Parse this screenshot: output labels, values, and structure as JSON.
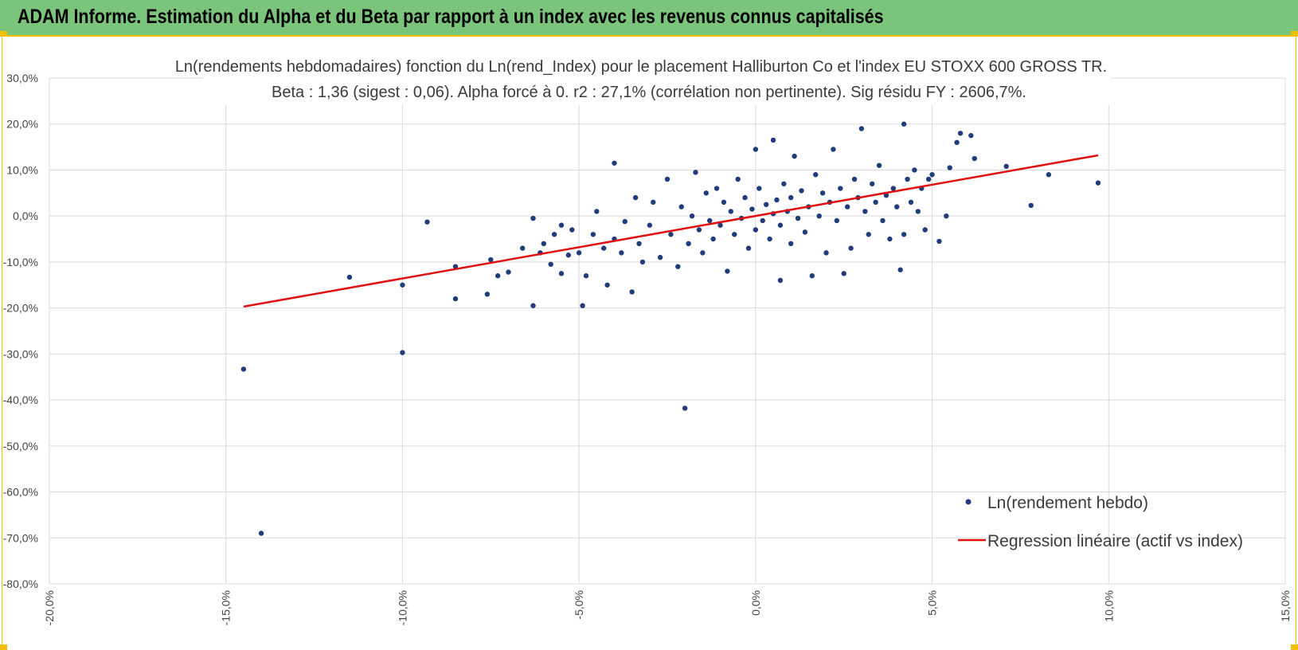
{
  "header": {
    "title": "ADAM Informe. Estimation du Alpha et du Beta par rapport à un index avec les revenus connus capitalisés"
  },
  "colors": {
    "banner": "#7bc47b",
    "accent_border": "#f0c000",
    "points": "#1f3d7a",
    "regression": "#e01010",
    "grid": "#d9d9d9"
  },
  "chart_data": {
    "type": "scatter",
    "title_line1": "Ln(rendements hebdomadaires) fonction du Ln(rend_Index) pour le placement Halliburton Co et l'index EU STOXX 600 GROSS TR.",
    "title_line2": "Beta : 1,36 (sigest : 0,06). Alpha forcé à 0. r2 : 27,1% (corrélation non pertinente). Sig résidu FY : 2606,7%.",
    "xlabel": "",
    "ylabel": "",
    "xlim": [
      -0.2,
      0.15
    ],
    "ylim": [
      -0.8,
      0.3
    ],
    "x_ticks": [
      "-20,0%",
      "-15,0%",
      "-10,0%",
      "-5,0%",
      "0,0%",
      "5,0%",
      "10,0%",
      "15,0%"
    ],
    "y_ticks": [
      "30,0%",
      "20,0%",
      "10,0%",
      "0,0%",
      "-10,0%",
      "-20,0%",
      "-30,0%",
      "-40,0%",
      "-50,0%",
      "-60,0%",
      "-70,0%",
      "-80,0%"
    ],
    "grid": "vertical and horizontal",
    "legend_position": "bottom-right",
    "series": [
      {
        "name": "Ln(rendement hebdo)",
        "kind": "points",
        "points": [
          [
            -0.145,
            -0.333
          ],
          [
            -0.14,
            -0.69
          ],
          [
            -0.115,
            -0.133
          ],
          [
            -0.1,
            -0.297
          ],
          [
            -0.1,
            -0.15
          ],
          [
            -0.093,
            -0.013
          ],
          [
            -0.085,
            -0.18
          ],
          [
            -0.085,
            -0.11
          ],
          [
            -0.076,
            -0.17
          ],
          [
            -0.075,
            -0.095
          ],
          [
            -0.073,
            -0.13
          ],
          [
            -0.07,
            -0.122
          ],
          [
            -0.066,
            -0.07
          ],
          [
            -0.063,
            -0.195
          ],
          [
            -0.063,
            -0.005
          ],
          [
            -0.061,
            -0.08
          ],
          [
            -0.06,
            -0.06
          ],
          [
            -0.058,
            -0.105
          ],
          [
            -0.057,
            -0.04
          ],
          [
            -0.055,
            -0.02
          ],
          [
            -0.055,
            -0.125
          ],
          [
            -0.053,
            -0.085
          ],
          [
            -0.052,
            -0.03
          ],
          [
            -0.05,
            -0.08
          ],
          [
            -0.049,
            -0.195
          ],
          [
            -0.048,
            -0.13
          ],
          [
            -0.046,
            -0.04
          ],
          [
            -0.045,
            0.01
          ],
          [
            -0.043,
            -0.07
          ],
          [
            -0.042,
            -0.15
          ],
          [
            -0.04,
            0.115
          ],
          [
            -0.04,
            -0.05
          ],
          [
            -0.038,
            -0.08
          ],
          [
            -0.037,
            -0.012
          ],
          [
            -0.035,
            -0.165
          ],
          [
            -0.034,
            0.04
          ],
          [
            -0.033,
            -0.06
          ],
          [
            -0.032,
            -0.1
          ],
          [
            -0.03,
            -0.02
          ],
          [
            -0.029,
            0.03
          ],
          [
            -0.027,
            -0.09
          ],
          [
            -0.025,
            0.08
          ],
          [
            -0.024,
            -0.04
          ],
          [
            -0.022,
            -0.11
          ],
          [
            -0.021,
            0.02
          ],
          [
            -0.02,
            -0.418
          ],
          [
            -0.019,
            -0.06
          ],
          [
            -0.018,
            0.0
          ],
          [
            -0.017,
            0.095
          ],
          [
            -0.016,
            -0.03
          ],
          [
            -0.015,
            -0.08
          ],
          [
            -0.014,
            0.05
          ],
          [
            -0.013,
            -0.01
          ],
          [
            -0.012,
            -0.05
          ],
          [
            -0.011,
            0.06
          ],
          [
            -0.01,
            -0.02
          ],
          [
            -0.009,
            0.03
          ],
          [
            -0.008,
            -0.12
          ],
          [
            -0.007,
            0.01
          ],
          [
            -0.006,
            -0.04
          ],
          [
            -0.005,
            0.08
          ],
          [
            -0.004,
            -0.005
          ],
          [
            -0.003,
            0.04
          ],
          [
            -0.002,
            -0.07
          ],
          [
            -0.001,
            0.015
          ],
          [
            0.0,
            0.145
          ],
          [
            0.0,
            -0.03
          ],
          [
            0.001,
            0.06
          ],
          [
            0.002,
            -0.01
          ],
          [
            0.003,
            0.025
          ],
          [
            0.004,
            -0.05
          ],
          [
            0.005,
            0.165
          ],
          [
            0.005,
            0.005
          ],
          [
            0.006,
            0.035
          ],
          [
            0.007,
            -0.14
          ],
          [
            0.007,
            -0.02
          ],
          [
            0.008,
            0.07
          ],
          [
            0.009,
            0.01
          ],
          [
            0.01,
            -0.06
          ],
          [
            0.01,
            0.04
          ],
          [
            0.011,
            0.13
          ],
          [
            0.012,
            -0.005
          ],
          [
            0.013,
            0.055
          ],
          [
            0.014,
            -0.035
          ],
          [
            0.015,
            0.02
          ],
          [
            0.016,
            -0.13
          ],
          [
            0.017,
            0.09
          ],
          [
            0.018,
            0.0
          ],
          [
            0.019,
            0.05
          ],
          [
            0.02,
            -0.08
          ],
          [
            0.021,
            0.03
          ],
          [
            0.022,
            0.145
          ],
          [
            0.023,
            -0.01
          ],
          [
            0.024,
            0.06
          ],
          [
            0.025,
            -0.125
          ],
          [
            0.026,
            0.02
          ],
          [
            0.027,
            -0.07
          ],
          [
            0.028,
            0.08
          ],
          [
            0.029,
            0.04
          ],
          [
            0.03,
            0.19
          ],
          [
            0.031,
            0.01
          ],
          [
            0.032,
            -0.04
          ],
          [
            0.033,
            0.07
          ],
          [
            0.034,
            0.03
          ],
          [
            0.035,
            0.11
          ],
          [
            0.036,
            -0.01
          ],
          [
            0.037,
            0.045
          ],
          [
            0.038,
            -0.05
          ],
          [
            0.039,
            0.06
          ],
          [
            0.04,
            0.02
          ],
          [
            0.041,
            -0.117
          ],
          [
            0.042,
            0.2
          ],
          [
            0.042,
            -0.04
          ],
          [
            0.043,
            0.08
          ],
          [
            0.044,
            0.03
          ],
          [
            0.045,
            0.1
          ],
          [
            0.046,
            0.01
          ],
          [
            0.047,
            0.06
          ],
          [
            0.048,
            -0.03
          ],
          [
            0.049,
            0.08
          ],
          [
            0.05,
            0.09
          ],
          [
            0.052,
            -0.055
          ],
          [
            0.054,
            0.0
          ],
          [
            0.055,
            0.105
          ],
          [
            0.057,
            0.16
          ],
          [
            0.058,
            0.18
          ],
          [
            0.061,
            0.175
          ],
          [
            0.062,
            0.125
          ],
          [
            0.071,
            0.108
          ],
          [
            0.078,
            0.023
          ],
          [
            0.083,
            0.09
          ],
          [
            0.097,
            0.072
          ]
        ]
      },
      {
        "name": "Regression linéaire (actif vs index)",
        "kind": "line",
        "points": [
          [
            -0.145,
            -0.197
          ],
          [
            0.097,
            0.132
          ]
        ]
      }
    ]
  }
}
